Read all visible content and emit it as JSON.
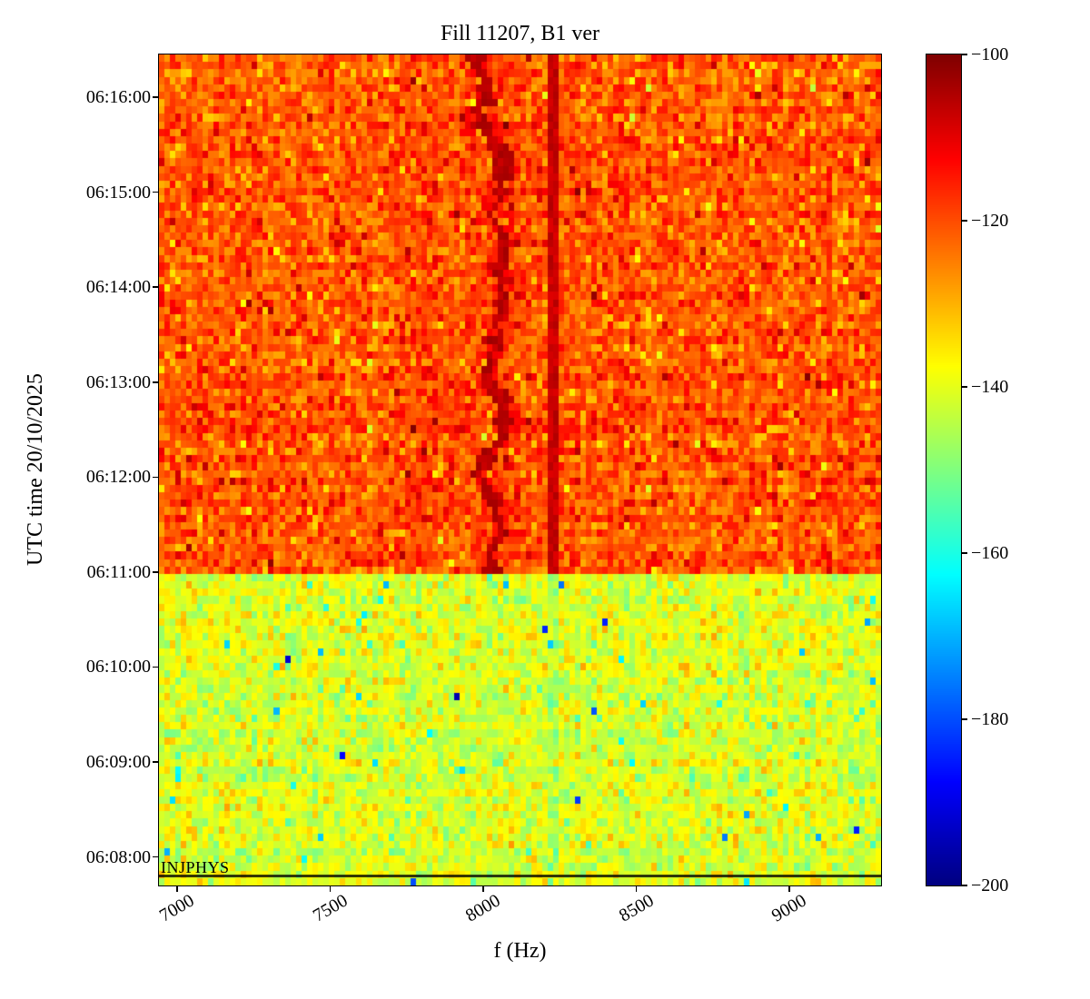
{
  "figure": {
    "background": "#ffffff"
  },
  "chart_data": {
    "type": "heatmap",
    "title": "Fill 11207, B1 ver",
    "xlabel": "f (Hz)",
    "ylabel": "UTC time 20/10/2025",
    "colormap": "jet",
    "clim": [
      -200,
      -100
    ],
    "x_range_hz": [
      6940,
      9300
    ],
    "x_ticks_hz": [
      7000,
      7500,
      8000,
      8500,
      9000
    ],
    "x_tick_labels": [
      "7000",
      "7500",
      "8000",
      "8500",
      "9000"
    ],
    "y_time_start": "06:07:42",
    "y_time_end": "06:16:27",
    "y_tick_labels": [
      "06:08:00",
      "06:09:00",
      "06:10:00",
      "06:11:00",
      "06:12:00",
      "06:13:00",
      "06:14:00",
      "06:15:00",
      "06:16:00"
    ],
    "colorbar_ticks": [
      -100,
      -120,
      -140,
      -160,
      -180,
      -200
    ],
    "colorbar_tick_labels": [
      "−100",
      "−120",
      "−140",
      "−160",
      "−180",
      "−200"
    ],
    "grid_bins": {
      "freq_cols": 132,
      "time_rows": 112
    },
    "segments": [
      {
        "name": "before-injection",
        "time_start": "06:07:42",
        "time_end": "06:11:00",
        "mean_level_db": -141,
        "noise_std_db": 4.5,
        "speckle_low_db": -165
      },
      {
        "name": "after-injection",
        "time_start": "06:11:00",
        "time_end": "06:16:27",
        "mean_level_db": -121,
        "noise_std_db": 4.5,
        "speckle_high_db": -110
      }
    ],
    "features": {
      "vertical_line": {
        "f_hz": 8230,
        "level_db": -107,
        "time_start": "06:11:00",
        "time_end": "06:16:27"
      },
      "tune_trace": {
        "f_min_hz": 7770,
        "f_max_hz": 8070,
        "f_start_hz": 7990,
        "level_db": -103,
        "time_start": "06:11:00",
        "time_end": "06:16:27"
      },
      "beam_mode_marker": {
        "label": "INJPHYS",
        "time": "06:07:48",
        "color": "#000000"
      }
    }
  }
}
